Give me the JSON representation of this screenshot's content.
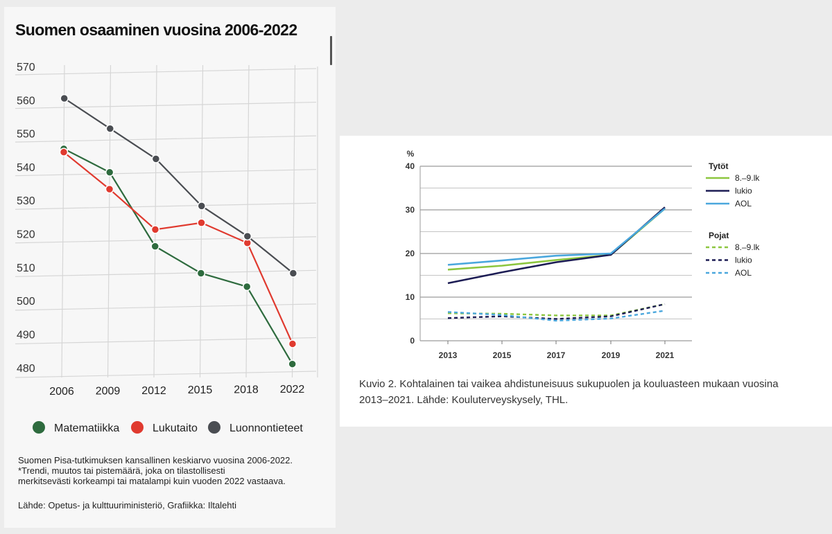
{
  "pisa": {
    "title": "Suomen osaaminen vuosina 2006-2022",
    "notes": "Suomen Pisa-tutkimuksen kansallinen keskiarvo vuosina 2006-2022.\n*Trendi, muutos tai pistemäärä, joka on tilastollisesti\nmerkitsevästi  korkeampi tai matalampi kuin vuoden 2022 vastaava.",
    "source": "Lähde: Opetus- ja kulttuuriministeriö, Grafiikka: Iltalehti"
  },
  "thl": {
    "caption": "Kuvio 2. Kohtalainen tai vaikea ahdistuneisuus sukupuolen ja kouluasteen mukaan vuosina\n2013–2021. Lähde: Kouluterveyskysely, THL."
  },
  "chart_data": [
    {
      "type": "line",
      "title": "Suomen osaaminen vuosina 2006-2022",
      "categories": [
        "2006",
        "2009",
        "2012",
        "2015",
        "2018",
        "2022"
      ],
      "ylim": [
        480,
        570
      ],
      "yticks": [
        "570",
        "560",
        "550",
        "540",
        "530",
        "520",
        "510",
        "500",
        "490",
        "480"
      ],
      "grid": true,
      "legend_position": "bottom",
      "series": [
        {
          "name": "Matematiikka",
          "color": "#2e6b3e",
          "values": [
            548,
            541,
            519,
            511,
            507,
            484
          ]
        },
        {
          "name": "Lukutaito",
          "color": "#e03a2f",
          "values": [
            547,
            536,
            524,
            526,
            520,
            490
          ]
        },
        {
          "name": "Luonnontieteet",
          "color": "#4a4d52",
          "values": [
            563,
            554,
            545,
            531,
            522,
            511
          ]
        }
      ]
    },
    {
      "type": "line",
      "title": "",
      "ylabel": "%",
      "categories": [
        "2013",
        "2015",
        "2017",
        "2019",
        "2021"
      ],
      "ylim": [
        0,
        40
      ],
      "yticks": [
        "40",
        "30",
        "20",
        "10",
        "0"
      ],
      "grid": true,
      "legend_position": "right",
      "legend_groups": [
        "Tytöt",
        "Pojat"
      ],
      "series": [
        {
          "name": "8.–9.lk",
          "group": "Tytöt",
          "style": "solid",
          "color": "#8cc63f",
          "values": [
            16.3,
            17.2,
            18.5,
            19.7,
            30.3
          ]
        },
        {
          "name": "lukio",
          "group": "Tytöt",
          "style": "solid",
          "color": "#1c1c54",
          "values": [
            13.2,
            15.7,
            18.0,
            19.7,
            30.6
          ]
        },
        {
          "name": "AOL",
          "group": "Tytöt",
          "style": "solid",
          "color": "#4aa7dd",
          "values": [
            17.4,
            18.4,
            19.5,
            20.0,
            30.3
          ]
        },
        {
          "name": "8.–9.lk",
          "group": "Pojat",
          "style": "dashed",
          "color": "#8cc63f",
          "values": [
            6.3,
            6.2,
            5.8,
            5.8,
            8.4
          ]
        },
        {
          "name": "lukio",
          "group": "Pojat",
          "style": "dashed",
          "color": "#1c1c54",
          "values": [
            5.2,
            5.6,
            5.0,
            5.6,
            8.4
          ]
        },
        {
          "name": "AOL",
          "group": "Pojat",
          "style": "dashed",
          "color": "#4aa7dd",
          "values": [
            6.6,
            5.9,
            4.6,
            5.1,
            6.9
          ]
        }
      ]
    }
  ]
}
